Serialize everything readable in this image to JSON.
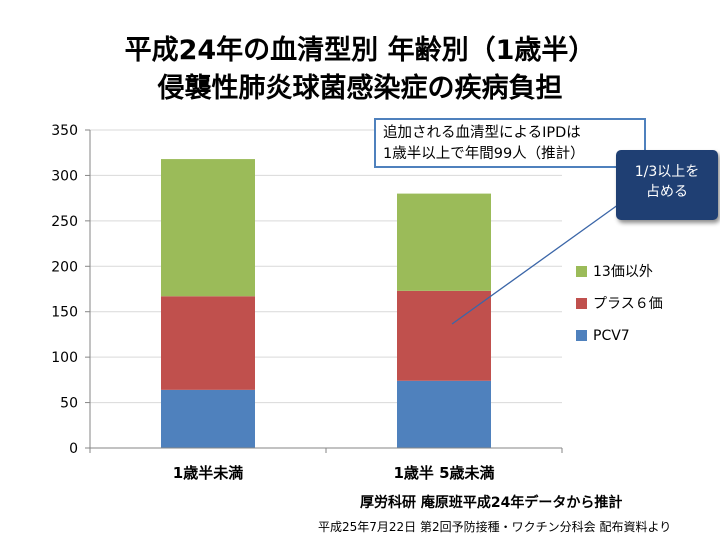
{
  "title": {
    "line1": "平成24年の血清型別 年齢別（1歳半）",
    "line2": "侵襲性肺炎球菌感染症の疾病負担"
  },
  "callouts": {
    "main_line1": "追加される血清型によるIPDは",
    "main_line2": "1歳半以上で年間99人（推計）",
    "highlight_line1": "1/3以上を",
    "highlight_line2": "占める"
  },
  "colors": {
    "pcv7": "#4f81bd",
    "plus6": "#c0504d",
    "other13": "#9bbb59",
    "axis": "#868686",
    "grid": "#d9d9d9",
    "callout_border": "#4f81bd",
    "highlight_bg": "#1f3f73"
  },
  "source": {
    "line1": "厚労科研 庵原班平成24年データから推計",
    "line2": "平成25年7月22日 第2回予防接種・ワクチン分科会 配布資料より"
  },
  "chart_data": {
    "type": "bar",
    "stacked": true,
    "categories": [
      "1歳半未満",
      "1歳半 5歳未満"
    ],
    "series": [
      {
        "name": "PCV7",
        "values": [
          64,
          74
        ],
        "color": "#4f81bd"
      },
      {
        "name": "プラス６価",
        "values": [
          103,
          99
        ],
        "color": "#c0504d"
      },
      {
        "name": "13価以外",
        "values": [
          151,
          107
        ],
        "color": "#9bbb59"
      }
    ],
    "ylim": [
      0,
      350
    ],
    "yticks": [
      0,
      50,
      100,
      150,
      200,
      250,
      300,
      350
    ],
    "grid": true,
    "legend_position": "right",
    "legend_order": [
      "13価以外",
      "プラス６価",
      "PCV7"
    ]
  }
}
